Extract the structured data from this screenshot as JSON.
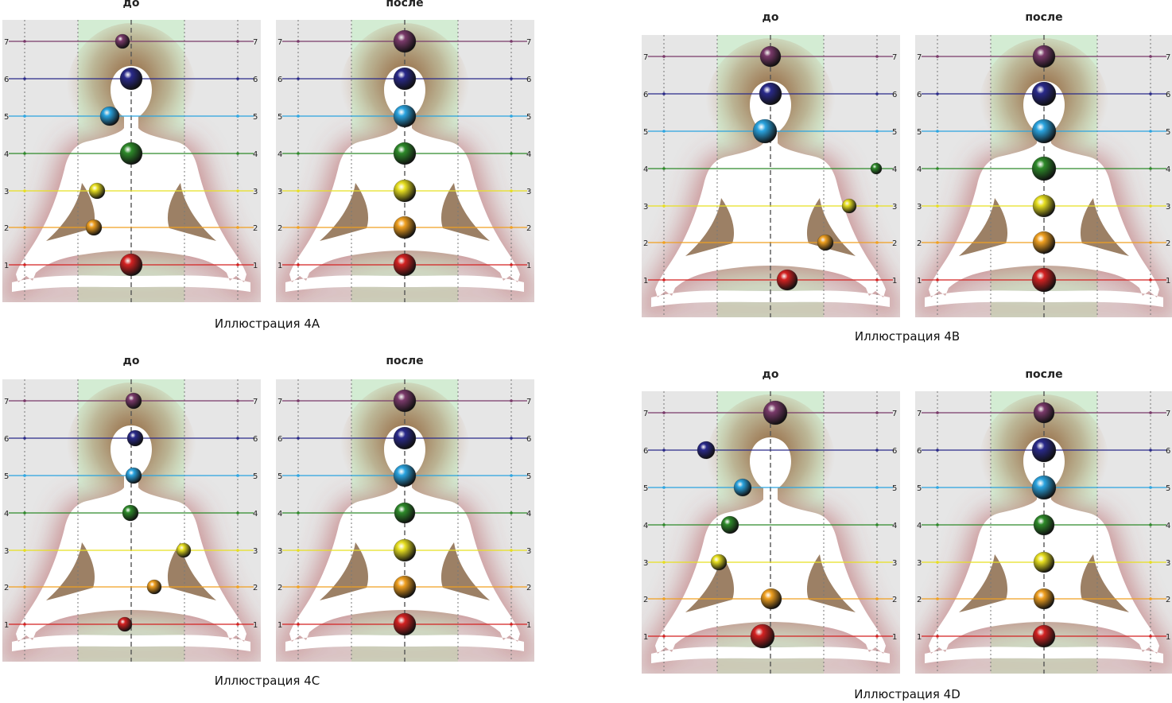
{
  "labels": {
    "before": "до",
    "after": "после"
  },
  "levels": [
    "1",
    "2",
    "3",
    "4",
    "5",
    "6",
    "7"
  ],
  "colors": {
    "levels": [
      "#d42222",
      "#f0a020",
      "#e8e020",
      "#2e8a2a",
      "#2aa4e0",
      "#2a2a8a",
      "#7a3a6a"
    ],
    "background": "#e6e6e6",
    "center_band": "#d3ecd3",
    "body": "#ffffff",
    "aura": "#b04a50"
  },
  "illustrations": [
    {
      "caption": "Иллюстрация 4A",
      "before": [
        {
          "level": 7,
          "offset": -11,
          "r": 9
        },
        {
          "level": 6,
          "offset": 0,
          "r": 14
        },
        {
          "level": 5,
          "offset": -27,
          "r": 12
        },
        {
          "level": 4,
          "offset": 0,
          "r": 14
        },
        {
          "level": 3,
          "offset": -43,
          "r": 10
        },
        {
          "level": 2,
          "offset": -47,
          "r": 10
        },
        {
          "level": 1,
          "offset": 0,
          "r": 14
        }
      ],
      "after": [
        {
          "level": 7,
          "offset": 0,
          "r": 14
        },
        {
          "level": 6,
          "offset": 0,
          "r": 14
        },
        {
          "level": 5,
          "offset": 0,
          "r": 14
        },
        {
          "level": 4,
          "offset": 0,
          "r": 14
        },
        {
          "level": 3,
          "offset": 0,
          "r": 14
        },
        {
          "level": 2,
          "offset": 0,
          "r": 14
        },
        {
          "level": 1,
          "offset": 0,
          "r": 14
        }
      ]
    },
    {
      "caption": "Иллюстрация 4B",
      "before": [
        {
          "level": 7,
          "offset": 0,
          "r": 13
        },
        {
          "level": 6,
          "offset": 0,
          "r": 14
        },
        {
          "level": 5,
          "offset": -7,
          "r": 15
        },
        {
          "level": 4,
          "offset": 133,
          "r": 7
        },
        {
          "level": 3,
          "offset": 99,
          "r": 9
        },
        {
          "level": 2,
          "offset": 69,
          "r": 10
        },
        {
          "level": 1,
          "offset": 21,
          "r": 13
        }
      ],
      "after": [
        {
          "level": 7,
          "offset": 0,
          "r": 14
        },
        {
          "level": 6,
          "offset": 0,
          "r": 15
        },
        {
          "level": 5,
          "offset": 0,
          "r": 15
        },
        {
          "level": 4,
          "offset": 0,
          "r": 15
        },
        {
          "level": 3,
          "offset": 0,
          "r": 14
        },
        {
          "level": 2,
          "offset": 0,
          "r": 14
        },
        {
          "level": 1,
          "offset": 0,
          "r": 15
        }
      ]
    },
    {
      "caption": "Иллюстрация 4C",
      "before": [
        {
          "level": 7,
          "offset": 3,
          "r": 10
        },
        {
          "level": 6,
          "offset": 5,
          "r": 10
        },
        {
          "level": 5,
          "offset": 3,
          "r": 10
        },
        {
          "level": 4,
          "offset": -1,
          "r": 10
        },
        {
          "level": 3,
          "offset": 66,
          "r": 9
        },
        {
          "level": 2,
          "offset": 29,
          "r": 9
        },
        {
          "level": 1,
          "offset": -8,
          "r": 9
        }
      ],
      "after": [
        {
          "level": 7,
          "offset": 0,
          "r": 14
        },
        {
          "level": 6,
          "offset": 0,
          "r": 14
        },
        {
          "level": 5,
          "offset": 0,
          "r": 14
        },
        {
          "level": 4,
          "offset": 0,
          "r": 13
        },
        {
          "level": 3,
          "offset": 0,
          "r": 14
        },
        {
          "level": 2,
          "offset": 0,
          "r": 14
        },
        {
          "level": 1,
          "offset": 0,
          "r": 14
        }
      ]
    },
    {
      "caption": "Иллюстрация 4D",
      "before": [
        {
          "level": 7,
          "offset": 6,
          "r": 15
        },
        {
          "level": 6,
          "offset": -81,
          "r": 11
        },
        {
          "level": 5,
          "offset": -35,
          "r": 11
        },
        {
          "level": 4,
          "offset": -51,
          "r": 11
        },
        {
          "level": 3,
          "offset": -65,
          "r": 10
        },
        {
          "level": 2,
          "offset": 1,
          "r": 13
        },
        {
          "level": 1,
          "offset": -10,
          "r": 15
        }
      ],
      "after": [
        {
          "level": 7,
          "offset": 0,
          "r": 13
        },
        {
          "level": 6,
          "offset": 0,
          "r": 15
        },
        {
          "level": 5,
          "offset": 0,
          "r": 15
        },
        {
          "level": 4,
          "offset": 0,
          "r": 13
        },
        {
          "level": 3,
          "offset": 0,
          "r": 13
        },
        {
          "level": 2,
          "offset": 0,
          "r": 13
        },
        {
          "level": 1,
          "offset": 0,
          "r": 14
        }
      ]
    }
  ]
}
